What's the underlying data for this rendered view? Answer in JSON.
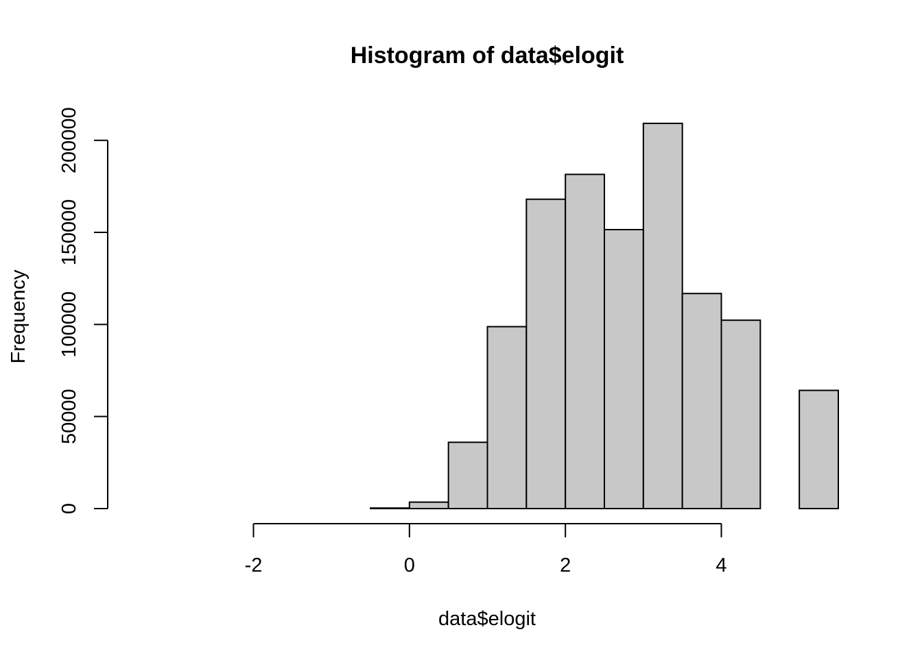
{
  "chart_data": {
    "type": "bar",
    "title": "Histogram of data$elogit",
    "xlabel": "data$elogit",
    "ylabel": "Frequency",
    "bar_color": "#c8c8c8",
    "border_color": "#000000",
    "bin_width": 0.5,
    "bins": [
      {
        "start": -3.5,
        "end": -3.0,
        "count": 0
      },
      {
        "start": -3.0,
        "end": -2.5,
        "count": 0
      },
      {
        "start": -2.5,
        "end": -2.0,
        "count": 0
      },
      {
        "start": -2.0,
        "end": -1.5,
        "count": 0
      },
      {
        "start": -1.5,
        "end": -1.0,
        "count": 0
      },
      {
        "start": -1.0,
        "end": -0.5,
        "count": 0
      },
      {
        "start": -0.5,
        "end": 0.0,
        "count": 300
      },
      {
        "start": 0.0,
        "end": 0.5,
        "count": 3500
      },
      {
        "start": 0.5,
        "end": 1.0,
        "count": 36000
      },
      {
        "start": 1.0,
        "end": 1.5,
        "count": 98800
      },
      {
        "start": 1.5,
        "end": 2.0,
        "count": 168000
      },
      {
        "start": 2.0,
        "end": 2.5,
        "count": 181500
      },
      {
        "start": 2.5,
        "end": 3.0,
        "count": 151500
      },
      {
        "start": 3.0,
        "end": 3.5,
        "count": 209200
      },
      {
        "start": 3.5,
        "end": 4.0,
        "count": 116800
      },
      {
        "start": 4.0,
        "end": 4.5,
        "count": 102300
      },
      {
        "start": 4.5,
        "end": 5.0,
        "count": 0
      },
      {
        "start": 5.0,
        "end": 5.5,
        "count": 64200
      }
    ],
    "xlim": [
      -3.5,
      5.5
    ],
    "ylim": [
      0,
      209200
    ],
    "x_ticks": [
      -2,
      0,
      2,
      4
    ],
    "x_tick_labels": [
      "-2",
      "0",
      "2",
      "4"
    ],
    "x_axis_range": [
      -2,
      4
    ],
    "y_ticks": [
      0,
      50000,
      100000,
      150000,
      200000
    ],
    "y_tick_labels": [
      "0",
      "50000",
      "100000",
      "150000",
      "200000"
    ],
    "grid": false,
    "legend": "none"
  }
}
